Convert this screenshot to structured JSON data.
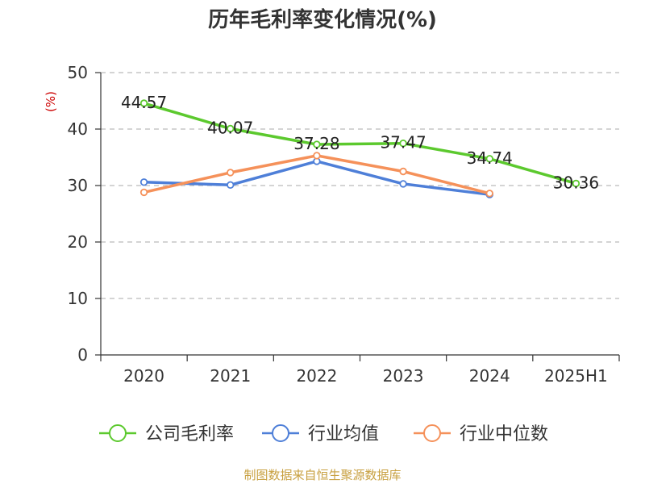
{
  "chart_data": {
    "type": "line",
    "title": "历年毛利率变化情况(%)",
    "ylabel": "(%)",
    "xlabel": "",
    "categories": [
      "2020",
      "2021",
      "2022",
      "2023",
      "2024",
      "2025H1"
    ],
    "ylim": [
      0,
      50
    ],
    "yticks": [
      0,
      10,
      20,
      30,
      40,
      50
    ],
    "grid": true,
    "legend_position": "bottom",
    "series": [
      {
        "name": "公司毛利率",
        "color": "#5cc92e",
        "values": [
          44.57,
          40.07,
          37.28,
          37.47,
          34.74,
          30.36
        ],
        "labels": [
          "44.57",
          "40.07",
          "37.28",
          "37.47",
          "34.74",
          "30.36"
        ]
      },
      {
        "name": "行业均值",
        "color": "#4e7fd8",
        "values": [
          30.6,
          30.1,
          34.3,
          30.3,
          28.4,
          null
        ]
      },
      {
        "name": "行业中位数",
        "color": "#f5915a",
        "values": [
          28.8,
          32.3,
          35.3,
          32.5,
          28.6,
          null
        ]
      }
    ]
  },
  "source": "制图数据来自恒生聚源数据库"
}
